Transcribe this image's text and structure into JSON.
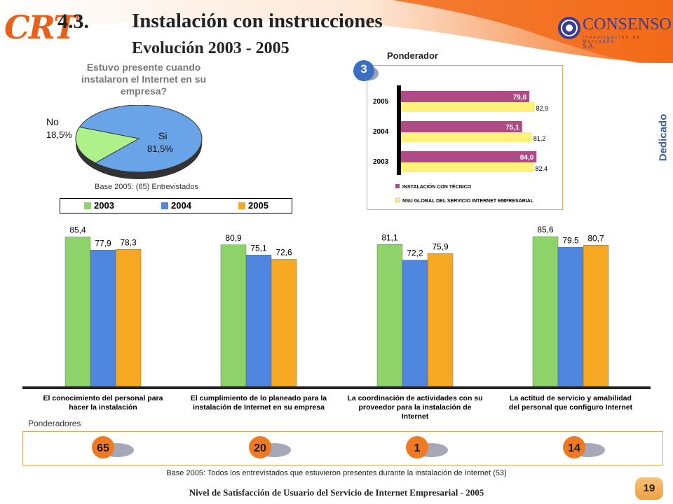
{
  "header": {
    "logo_text": "CRT",
    "section": "4.3.",
    "title": "Instalación con instrucciones",
    "subtitle": "Evolución 2003 - 2005",
    "brand": "CONSENSO",
    "brand_suffix": "S.A.",
    "brand_tagline": "Investigación de Mercados",
    "side_tab": "Dedicado"
  },
  "colors": {
    "y2003": "#8ed36a",
    "y2004": "#4f86e0",
    "y2005": "#f7a823",
    "accent": "#e8601a"
  },
  "pie": {
    "question": "Estuvo presente cuando instalaron el Internet en su empresa?",
    "base": "Base 2005: (65) Entrevistados",
    "legend": [
      "2003",
      "2004",
      "2005"
    ]
  },
  "ponderador": {
    "title": "Ponderador",
    "value": "3",
    "legend_tech": "INSTALACIÓN CON TÉCNICO",
    "legend_nsu": "NSU GLOBAL DEL SERVICIO INTERNET EMPRESARIAL"
  },
  "ponderadores": {
    "label": "Ponderadores",
    "values": [
      "65",
      "20",
      "1",
      "14"
    ]
  },
  "base_footer": "Base 2005: Todos los entrevistados que estuvieron presentes durante la instalación  de Internet  (53)",
  "footer": "Nivel de Satisfacción de Usuario del Servicio de Internet Empresarial - 2005",
  "page": "19",
  "chart_data": [
    {
      "type": "pie",
      "slices": [
        {
          "label": "No",
          "value": 18.5,
          "display": "18,5%"
        },
        {
          "label": "Si",
          "value": 81.5,
          "display": "81,5%"
        }
      ]
    },
    {
      "type": "bar",
      "orientation": "horizontal",
      "categories": [
        "2005",
        "2004",
        "2003"
      ],
      "series": [
        {
          "name": "INSTALACIÓN CON TÉCNICO",
          "values": [
            79.6,
            75.1,
            84.0
          ],
          "labels": [
            "79,6",
            "75,1",
            "84,0"
          ]
        },
        {
          "name": "NSU GLOBAL DEL SERVICIO INTERNET EMPRESARIAL",
          "values": [
            82.9,
            81.2,
            82.4
          ],
          "labels": [
            "82,9",
            "81,2",
            "82,4"
          ]
        }
      ],
      "xlim": [
        0,
        100
      ]
    },
    {
      "type": "bar",
      "categories": [
        "El conocimiento del personal para hacer la instalación",
        "El cumplimiento de lo planeado para la instalación de Internet en su empresa",
        "La coordinación de actividades con su proveedor para la instalación de Internet",
        "La actitud de servicio y amabilidad del personal que configuro Internet"
      ],
      "series": [
        {
          "name": "2003",
          "values": [
            85.4,
            80.9,
            81.1,
            85.6
          ],
          "labels": [
            "85,4",
            "80,9",
            "81,1",
            "85,6"
          ]
        },
        {
          "name": "2004",
          "values": [
            77.9,
            75.1,
            72.2,
            79.5
          ],
          "labels": [
            "77,9",
            "75,1",
            "72,2",
            "79,5"
          ]
        },
        {
          "name": "2005",
          "values": [
            78.3,
            72.6,
            75.9,
            80.7
          ],
          "labels": [
            "78,3",
            "72,6",
            "75,9",
            "80,7"
          ]
        }
      ],
      "ylim": [
        0,
        100
      ]
    }
  ]
}
